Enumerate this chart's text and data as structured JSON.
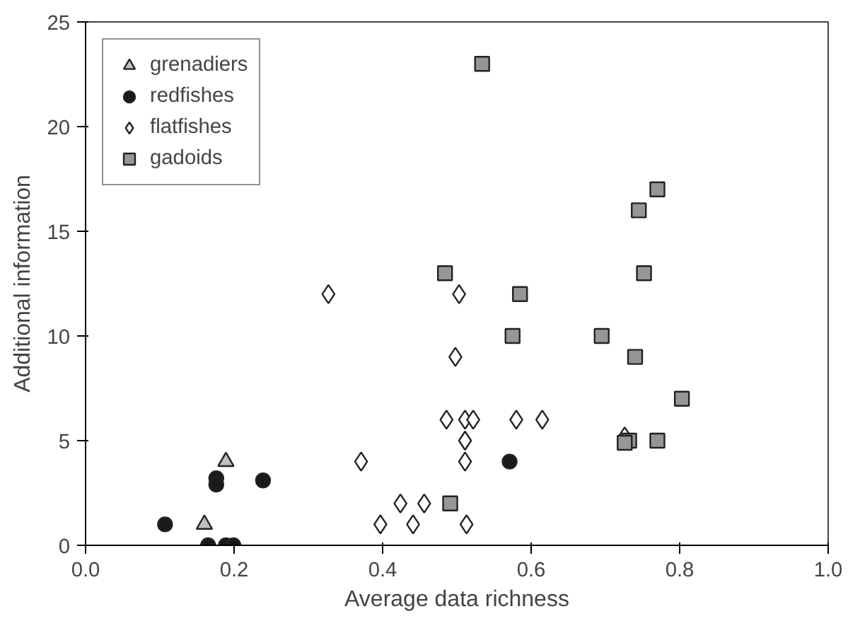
{
  "chart_data": {
    "type": "scatter",
    "xlabel": "Average data richness",
    "ylabel": "Additional information",
    "xlim": [
      0.0,
      1.0
    ],
    "ylim": [
      0,
      25
    ],
    "xticks": [
      {
        "value": 0,
        "label": "0.0"
      },
      {
        "value": 0.2,
        "label": "0.2"
      },
      {
        "value": 0.4,
        "label": "0.4"
      },
      {
        "value": 0.6,
        "label": "0.6"
      },
      {
        "value": 0.8,
        "label": "0.8"
      },
      {
        "value": 1,
        "label": "1.0"
      }
    ],
    "yticks": [
      0,
      5,
      10,
      15,
      20,
      25
    ],
    "grid": false,
    "legend": "top left",
    "series": [
      {
        "name": "grenadiers",
        "color": "#c0c0c0",
        "marker": "triangle",
        "x": [
          0.16,
          0.189
        ],
        "values": [
          1,
          4
        ]
      },
      {
        "name": "redfishes",
        "color": "#1a1a1a",
        "marker": "circle",
        "x": [
          0.107,
          0.176,
          0.176,
          0.165,
          0.189,
          0.199,
          0.239,
          0.571
        ],
        "values": [
          1,
          3.2,
          2.9,
          0,
          0,
          0,
          3.1,
          4
        ]
      },
      {
        "name": "flatfishes",
        "color": "#ffffff",
        "marker": "diamond",
        "x": [
          0.327,
          0.371,
          0.397,
          0.424,
          0.441,
          0.456,
          0.513,
          0.511,
          0.511,
          0.503,
          0.498,
          0.486,
          0.511,
          0.522,
          0.58,
          0.615,
          0.726
        ],
        "values": [
          12,
          4,
          1,
          2,
          1,
          2,
          1,
          4,
          5,
          12,
          9,
          6,
          6,
          6,
          6,
          6,
          5.2
        ]
      },
      {
        "name": "gadoids",
        "color": "#969696",
        "marker": "square",
        "x": [
          0.484,
          0.585,
          0.575,
          0.695,
          0.74,
          0.752,
          0.745,
          0.803,
          0.732,
          0.726,
          0.77,
          0.491,
          0.534,
          0.77
        ],
        "values": [
          13,
          12,
          10,
          10,
          9,
          13,
          16,
          7,
          5,
          4.9,
          5,
          2,
          23,
          17
        ]
      }
    ]
  }
}
